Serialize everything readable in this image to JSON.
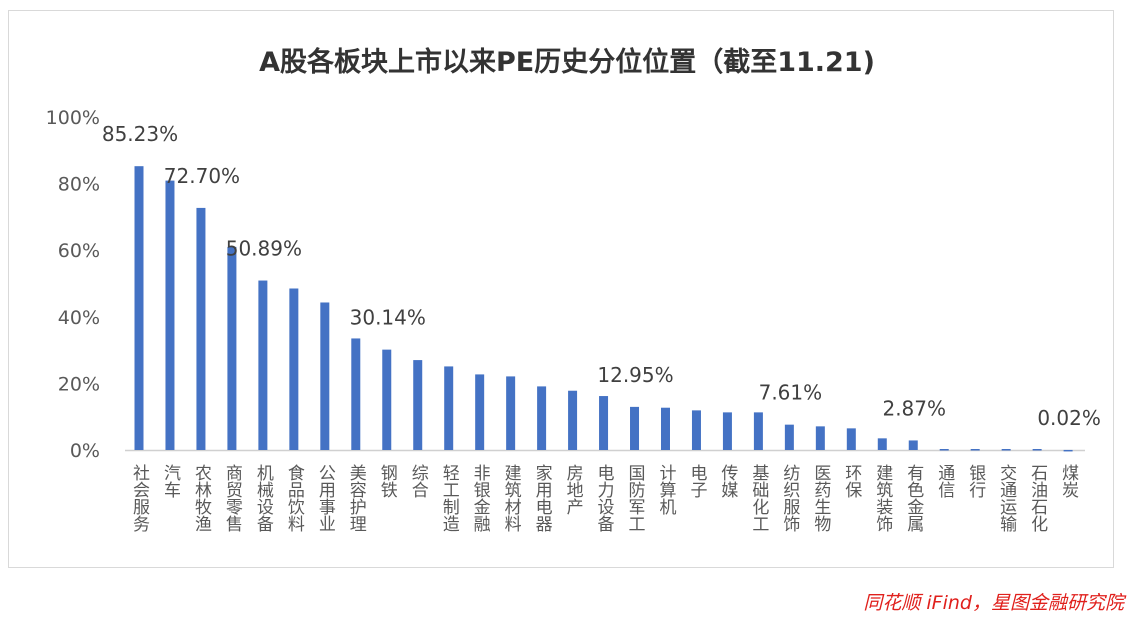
{
  "chart_data": {
    "type": "bar",
    "title": "A股各板块上市以来PE历史分位位置（截至11.21)",
    "categories": [
      "社会服务",
      "汽车",
      "农林牧渔",
      "商贸零售",
      "机械设备",
      "食品饮料",
      "公用事业",
      "美容护理",
      "钢铁",
      "综合",
      "轻工制造",
      "非银金融",
      "建筑材料",
      "家用电器",
      "房地产",
      "电力设备",
      "国防军工",
      "计算机",
      "电子",
      "传媒",
      "基础化工",
      "纺织服饰",
      "医药生物",
      "环保",
      "建筑装饰",
      "有色金属",
      "通信",
      "银行",
      "交通运输",
      "石油石化",
      "煤炭"
    ],
    "values": [
      85.23,
      80.9,
      72.7,
      61.0,
      50.89,
      48.5,
      44.3,
      33.5,
      30.14,
      27.0,
      25.1,
      22.7,
      22.1,
      19.1,
      17.8,
      16.2,
      12.95,
      12.7,
      11.9,
      11.3,
      11.3,
      7.61,
      7.1,
      6.5,
      3.5,
      2.87,
      0.3,
      0.3,
      0.3,
      0.3,
      0.02
    ],
    "data_labels": [
      {
        "category": "社会服务",
        "text": "85.23%"
      },
      {
        "category": "农林牧渔",
        "text": "72.70%"
      },
      {
        "category": "机械设备",
        "text": "50.89%"
      },
      {
        "category": "钢铁",
        "text": "30.14%"
      },
      {
        "category": "国防军工",
        "text": "12.95%"
      },
      {
        "category": "纺织服饰",
        "text": "7.61%"
      },
      {
        "category": "有色金属",
        "text": "2.87%"
      },
      {
        "category": "煤炭",
        "text": "0.02%"
      }
    ],
    "yticks": [
      "0%",
      "20%",
      "40%",
      "60%",
      "80%",
      "100%"
    ],
    "ylim": [
      0,
      100
    ],
    "xlabel": "",
    "ylabel": "",
    "grid": false,
    "bar_color": "#4472c4"
  },
  "source": "同花顺 iFind，星图金融研究院"
}
